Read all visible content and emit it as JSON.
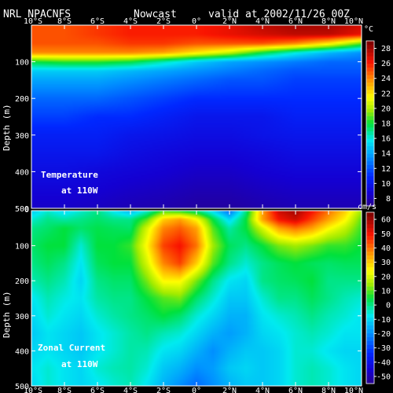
{
  "header": {
    "source": "NRL NPACNFS",
    "product": "Nowcast",
    "valid": "valid at 2002/11/26 00Z"
  },
  "chart_data": [
    {
      "type": "heatmap",
      "label_main": "Temperature",
      "label_sub": "at 110W",
      "ylabel": "Depth (m)",
      "unit": "°C",
      "x_ticks": [
        "10°S",
        "8°S",
        "6°S",
        "4°S",
        "2°S",
        "0°",
        "2°N",
        "4°N",
        "6°N",
        "8°N",
        "10°N"
      ],
      "x_values": [
        -10,
        -8,
        -6,
        -4,
        -2,
        0,
        2,
        4,
        6,
        8,
        10
      ],
      "y_ticks": [
        "0",
        "100",
        "200",
        "300",
        "400",
        "500"
      ],
      "ylim": [
        0,
        500
      ],
      "colorbar": {
        "ticks": [
          "8",
          "10",
          "12",
          "14",
          "16",
          "18",
          "20",
          "22",
          "24",
          "26",
          "28"
        ],
        "min": 7,
        "max": 29
      },
      "field": {
        "lat": [
          -10,
          -8,
          -6,
          -4,
          -2,
          0,
          2,
          4,
          6,
          8,
          10
        ],
        "depth": [
          0,
          25,
          50,
          75,
          100,
          125,
          150,
          200,
          250,
          300,
          350,
          400,
          450,
          500
        ],
        "values": [
          [
            25,
            25,
            25.5,
            26,
            26,
            26,
            26.5,
            27.5,
            28,
            28,
            27
          ],
          [
            25,
            25,
            25.5,
            26,
            26,
            26,
            26.5,
            27,
            27.5,
            27.5,
            26.5
          ],
          [
            25,
            25,
            25,
            25.5,
            25.5,
            25,
            25,
            25,
            24,
            22,
            19
          ],
          [
            24,
            24,
            24,
            24,
            23.5,
            22,
            20.5,
            18,
            16,
            14.5,
            13.5
          ],
          [
            18,
            18.5,
            18.5,
            18,
            16.5,
            15,
            14,
            13.5,
            13,
            12.5,
            12.5
          ],
          [
            15,
            15,
            15,
            14.5,
            14,
            13.5,
            13,
            12.5,
            12,
            12,
            12
          ],
          [
            14,
            14,
            14,
            13.5,
            13,
            12.5,
            12,
            12,
            11.5,
            11.5,
            11.5
          ],
          [
            12.5,
            12.5,
            12.5,
            12,
            11.5,
            11,
            11,
            11,
            11,
            11,
            11
          ],
          [
            11.5,
            11.5,
            11,
            11,
            10.5,
            10,
            10,
            10,
            10.5,
            10.5,
            10.5
          ],
          [
            10.5,
            10.5,
            10.5,
            10,
            9.8,
            9.5,
            9.5,
            9.8,
            10,
            10,
            10
          ],
          [
            10,
            10,
            10,
            9.5,
            9.2,
            9,
            9,
            9.2,
            9.5,
            9.5,
            9.5
          ],
          [
            9.5,
            9.5,
            9.2,
            9,
            8.8,
            8.5,
            8.5,
            8.8,
            9,
            9,
            9
          ],
          [
            9,
            9,
            8.8,
            8.5,
            8.3,
            8,
            8,
            8.3,
            8.5,
            8.5,
            8.5
          ],
          [
            8.5,
            8.5,
            8.3,
            8,
            7.8,
            7.5,
            7.5,
            7.8,
            8,
            8,
            8
          ]
        ]
      }
    },
    {
      "type": "heatmap",
      "label_main": "Zonal Current",
      "label_sub": "at 110W",
      "ylabel": "Depth (m)",
      "unit": "cm/s",
      "x_ticks": [
        "10°S",
        "8°S",
        "6°S",
        "4°S",
        "2°S",
        "0°",
        "2°N",
        "4°N",
        "6°N",
        "8°N",
        "10°N"
      ],
      "x_values": [
        -10,
        -8,
        -6,
        -4,
        -2,
        0,
        2,
        4,
        6,
        8,
        10
      ],
      "y_ticks": [
        "0",
        "100",
        "200",
        "300",
        "400",
        "500"
      ],
      "ylim": [
        0,
        500
      ],
      "colorbar": {
        "ticks": [
          "-50",
          "-40",
          "-30",
          "-20",
          "-10",
          "0",
          "10",
          "20",
          "30",
          "40",
          "50",
          "60"
        ],
        "min": -55,
        "max": 65
      },
      "field": {
        "lat": [
          -10,
          -9,
          -8,
          -7,
          -6,
          -5,
          -4,
          -3,
          -2,
          -1,
          0,
          1,
          2,
          3,
          4,
          5,
          6,
          7,
          8,
          9,
          10
        ],
        "depth": [
          0,
          25,
          50,
          100,
          150,
          200,
          250,
          300,
          350,
          400,
          450,
          500
        ],
        "values": [
          [
            -12,
            -5,
            -10,
            -5,
            0,
            -8,
            -15,
            -5,
            8,
            5,
            0,
            -10,
            -25,
            0,
            35,
            55,
            60,
            50,
            40,
            30,
            15
          ],
          [
            -5,
            0,
            -2,
            0,
            2,
            0,
            0,
            10,
            30,
            35,
            25,
            5,
            -10,
            5,
            35,
            50,
            55,
            45,
            35,
            25,
            10
          ],
          [
            0,
            2,
            5,
            2,
            4,
            3,
            2,
            20,
            38,
            42,
            35,
            10,
            -2,
            5,
            20,
            35,
            40,
            35,
            25,
            18,
            8
          ],
          [
            2,
            5,
            5,
            -5,
            5,
            5,
            8,
            25,
            45,
            50,
            40,
            15,
            3,
            0,
            5,
            12,
            15,
            12,
            8,
            8,
            5
          ],
          [
            0,
            3,
            0,
            -8,
            3,
            5,
            5,
            20,
            38,
            45,
            30,
            10,
            0,
            -5,
            0,
            3,
            5,
            3,
            2,
            3,
            3
          ],
          [
            -3,
            0,
            -3,
            -10,
            0,
            2,
            2,
            12,
            25,
            25,
            12,
            0,
            -8,
            -10,
            0,
            2,
            3,
            5,
            0,
            0,
            0
          ],
          [
            -8,
            -3,
            -6,
            -8,
            -2,
            0,
            0,
            5,
            10,
            12,
            2,
            -5,
            -12,
            -12,
            -5,
            0,
            0,
            3,
            0,
            -3,
            -5
          ],
          [
            -10,
            -5,
            -8,
            -10,
            -5,
            -2,
            0,
            2,
            5,
            2,
            -5,
            -10,
            -15,
            -15,
            -8,
            -5,
            -3,
            0,
            -3,
            -5,
            -8
          ],
          [
            -12,
            -8,
            -10,
            -12,
            -8,
            -5,
            -2,
            0,
            -3,
            -5,
            -10,
            -15,
            -18,
            -15,
            -10,
            -8,
            -5,
            -3,
            -5,
            -8,
            -8
          ],
          [
            -10,
            -8,
            -10,
            -12,
            -8,
            -5,
            -2,
            -3,
            -8,
            -10,
            -15,
            -20,
            -15,
            -12,
            -12,
            -10,
            -5,
            -5,
            -8,
            -10,
            -10
          ],
          [
            -8,
            -5,
            -8,
            -10,
            -5,
            -3,
            -2,
            -5,
            -12,
            -15,
            -20,
            -18,
            -12,
            -10,
            -12,
            -10,
            -5,
            -3,
            -5,
            -8,
            -10
          ],
          [
            -10,
            -5,
            -8,
            -10,
            -8,
            -5,
            -3,
            -8,
            -15,
            -20,
            -25,
            -20,
            -15,
            -12,
            -12,
            -10,
            -5,
            -3,
            -5,
            -8,
            -10
          ]
        ]
      }
    }
  ]
}
